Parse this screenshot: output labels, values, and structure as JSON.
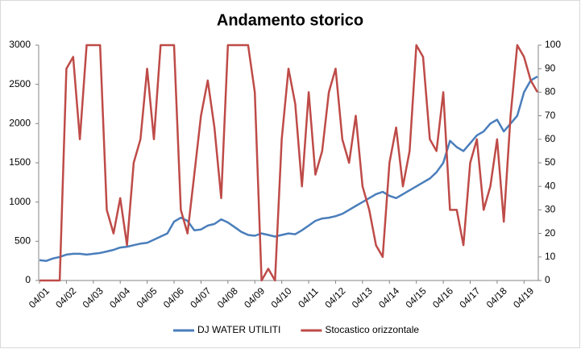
{
  "chart_data": {
    "type": "line",
    "title": "Andamento storico",
    "categories": [
      "04/01",
      null,
      null,
      null,
      "04/02",
      null,
      null,
      null,
      "04/03",
      null,
      null,
      null,
      "04/04",
      null,
      null,
      null,
      "04/05",
      null,
      null,
      null,
      "04/06",
      null,
      null,
      null,
      "04/07",
      null,
      null,
      null,
      "04/08",
      null,
      null,
      null,
      "04/09",
      null,
      null,
      null,
      "04/10",
      null,
      null,
      null,
      "04/11",
      null,
      null,
      null,
      "04/12",
      null,
      null,
      null,
      "04/13",
      null,
      null,
      null,
      "04/14",
      null,
      null,
      null,
      "04/15",
      null,
      null,
      null,
      "04/16",
      null,
      null,
      null,
      "04/17",
      null,
      null,
      null,
      "04/18",
      null,
      null,
      null,
      "04/19",
      null,
      null
    ],
    "series": [
      {
        "name": "DJ WATER UTILITI",
        "color": "#4a7ebb",
        "values": [
          260,
          250,
          280,
          300,
          330,
          340,
          340,
          330,
          340,
          350,
          370,
          390,
          420,
          430,
          450,
          470,
          480,
          520,
          560,
          600,
          750,
          800,
          760,
          640,
          650,
          700,
          720,
          780,
          740,
          680,
          620,
          580,
          570,
          600,
          580,
          560,
          580,
          600,
          590,
          640,
          700,
          760,
          790,
          800,
          820,
          850,
          900,
          950,
          1000,
          1050,
          1100,
          1130,
          1080,
          1050,
          1100,
          1150,
          1200,
          1250,
          1300,
          1380,
          1500,
          1780,
          1700,
          1650,
          1750,
          1850,
          1900,
          2000,
          2050,
          1900,
          2000,
          2100,
          2400,
          2550,
          2600
        ]
      },
      {
        "name": "Stocastico orizzontale",
        "color": "#be4b48",
        "axis": "y2",
        "values": [
          0,
          0,
          0,
          0,
          90,
          95,
          60,
          100,
          100,
          100,
          30,
          20,
          35,
          15,
          50,
          60,
          90,
          60,
          100,
          100,
          100,
          30,
          20,
          45,
          70,
          85,
          65,
          35,
          100,
          100,
          100,
          100,
          80,
          0,
          5,
          0,
          60,
          90,
          75,
          40,
          80,
          45,
          55,
          80,
          90,
          60,
          50,
          70,
          40,
          30,
          15,
          10,
          50,
          65,
          40,
          55,
          100,
          95,
          60,
          55,
          80,
          30,
          30,
          15,
          50,
          60,
          30,
          40,
          60,
          25,
          70,
          100,
          95,
          85,
          80
        ]
      }
    ],
    "ylim": [
      0,
      3000
    ],
    "yticks": [
      0,
      500,
      1000,
      1500,
      2000,
      2500,
      3000
    ],
    "y2lim": [
      0,
      100
    ],
    "y2ticks": [
      0,
      10,
      20,
      30,
      40,
      50,
      60,
      70,
      80,
      90,
      100
    ],
    "grid": false,
    "legend": "bottom"
  }
}
